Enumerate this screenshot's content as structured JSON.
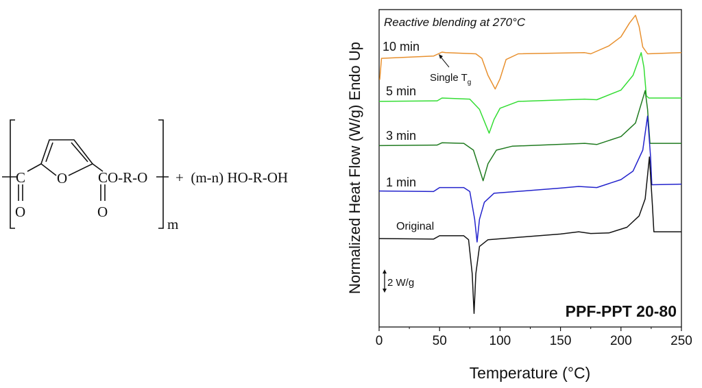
{
  "structure": {
    "carbonyl_left": "C",
    "oxygen_left": "O",
    "ring_oxygen": "O",
    "ester_group": "CO-R-O",
    "oxygen_right": "O",
    "repeat_subscript": "m",
    "plus_term": "+  (m-n) HO-R-OH"
  },
  "chart_data": {
    "type": "line",
    "title": "Reactive blending at 270°C",
    "sample_label": "PPF-PPT 20-80",
    "xlabel": "Temperature (°C)",
    "ylabel": "Normalized Heat Flow (W/g) Endo Up",
    "xlim": [
      0,
      250
    ],
    "ylim": [
      0,
      28
    ],
    "xticks": [
      0,
      50,
      100,
      150,
      200,
      250
    ],
    "yticks_shown": false,
    "grid": false,
    "scale_bar": "2 W/g",
    "annotation": {
      "text": "Single T",
      "subscript": "g"
    },
    "series": [
      {
        "name": "10 min",
        "color": "#e8902e",
        "x": [
          0.5,
          2,
          45,
          52,
          55,
          80,
          85,
          90,
          96,
          100,
          105,
          115,
          170,
          175,
          190,
          200,
          207,
          212,
          215,
          218,
          222,
          250
        ],
        "y": [
          21.8,
          23.7,
          23.9,
          24.25,
          24.2,
          24.1,
          23.7,
          22.2,
          21.0,
          21.9,
          23.6,
          24.1,
          24.2,
          24.1,
          24.8,
          25.6,
          26.8,
          27.5,
          26.5,
          24.7,
          24.1,
          24.2
        ]
      },
      {
        "name": "5 min",
        "color": "#33dd33",
        "x": [
          0,
          48,
          52,
          75,
          83,
          91,
          95,
          100,
          115,
          170,
          180,
          200,
          210,
          216.7,
          219,
          221,
          223,
          250
        ],
        "y": [
          19.9,
          19.95,
          20.2,
          20.1,
          19.2,
          17.1,
          18.3,
          19.3,
          19.9,
          20.1,
          20.05,
          20.9,
          22.2,
          24.2,
          22.9,
          20.4,
          20.2,
          20.2
        ]
      },
      {
        "name": "3 min",
        "color": "#1f7a1f",
        "x": [
          0,
          48,
          52,
          70,
          78,
          86,
          90,
          97,
          110,
          170,
          180,
          200,
          212,
          220,
          222,
          224,
          250
        ],
        "y": [
          16.0,
          16.05,
          16.25,
          16.2,
          15.6,
          12.9,
          14.4,
          15.6,
          15.95,
          16.2,
          16.1,
          16.8,
          18.0,
          20.85,
          19.2,
          16.2,
          16.2
        ]
      },
      {
        "name": "1 min",
        "color": "#2222cc",
        "x": [
          0,
          45,
          50,
          70,
          75,
          79,
          81,
          83,
          87,
          95,
          150,
          165,
          180,
          200,
          210,
          218,
          222,
          224.5,
          225.5,
          250
        ],
        "y": [
          12.0,
          11.95,
          12.3,
          12.3,
          11.95,
          9.5,
          7.5,
          9.5,
          11.0,
          11.8,
          12.25,
          12.4,
          12.3,
          13.0,
          13.75,
          15.6,
          18.6,
          15.0,
          12.55,
          12.6
        ]
      },
      {
        "name": "Original",
        "color": "#111111",
        "x": [
          0,
          45,
          50,
          70,
          74,
          77,
          78.5,
          80,
          83,
          90,
          150,
          165,
          175,
          190,
          205,
          215,
          220,
          223.5,
          226,
          227.2,
          250
        ],
        "y": [
          7.8,
          7.75,
          8.05,
          8.05,
          7.7,
          4.7,
          1.2,
          4.7,
          7.1,
          7.7,
          8.2,
          8.4,
          8.25,
          8.3,
          8.8,
          9.8,
          11.3,
          15.0,
          10.7,
          8.4,
          8.4
        ]
      }
    ]
  }
}
